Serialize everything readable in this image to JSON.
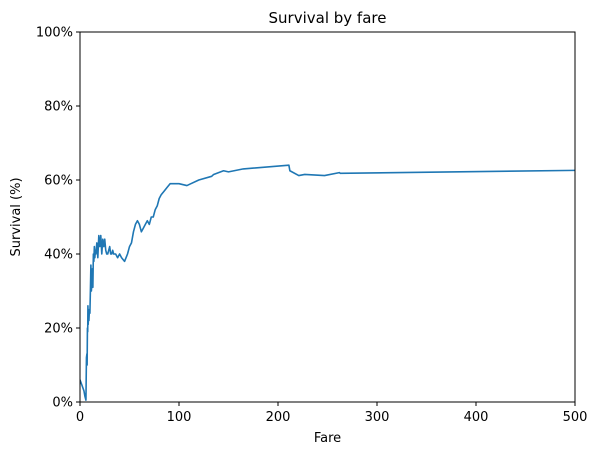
{
  "chart_data": {
    "type": "line",
    "title": "Survival by fare",
    "xlabel": "Fare",
    "ylabel": "Survival (%)",
    "xlim": [
      0,
      500
    ],
    "ylim": [
      0,
      100
    ],
    "x_ticks": [
      0,
      100,
      200,
      300,
      400,
      500
    ],
    "y_ticks": [
      0,
      20,
      40,
      60,
      80,
      100
    ],
    "x_tick_labels": [
      "0",
      "100",
      "200",
      "300",
      "400",
      "500"
    ],
    "y_tick_labels": [
      "0%",
      "20%",
      "40%",
      "60%",
      "80%",
      "100%"
    ],
    "grid": false,
    "line_color": "#1f77b4",
    "series": [
      {
        "x": [
          0,
          4,
          5,
          6,
          6.5,
          7,
          7.2,
          7.5,
          7.8,
          8,
          8.3,
          8.6,
          9,
          9.5,
          10,
          10.5,
          11,
          11.5,
          12,
          12.5,
          13,
          13.5,
          14,
          14.5,
          15,
          15.5,
          16,
          17,
          18,
          19,
          20,
          21,
          22,
          23,
          24,
          25,
          26,
          27,
          28,
          29,
          30,
          31,
          32,
          33,
          34,
          35,
          36,
          38,
          40,
          42,
          45,
          48,
          50,
          52,
          54,
          56,
          58,
          60,
          62,
          64,
          66,
          68,
          70,
          72,
          74,
          76,
          78,
          80,
          82,
          85,
          88,
          91,
          95,
          100,
          108,
          112,
          120,
          133,
          135,
          140,
          145,
          150,
          165,
          211,
          212,
          221,
          227,
          247,
          262,
          263,
          500
        ],
        "y": [
          6,
          3,
          1.5,
          0.5,
          12,
          13,
          10,
          20,
          19,
          26,
          21,
          25,
          22,
          25,
          24,
          30,
          37,
          30,
          33,
          36,
          31,
          40,
          38,
          42,
          39,
          41,
          40,
          43,
          39,
          45,
          42,
          45,
          40,
          44,
          42,
          44,
          41,
          40,
          40,
          41,
          42,
          40,
          40,
          41,
          40,
          40,
          40,
          39,
          40,
          39,
          38,
          40,
          42,
          43,
          46,
          48,
          49,
          48,
          46,
          47,
          48,
          49,
          48,
          50,
          50,
          52,
          53,
          55,
          56,
          57,
          58,
          59,
          59,
          59,
          58.5,
          59,
          60,
          61,
          61.5,
          62,
          62.5,
          62.2,
          63,
          64,
          62.5,
          61.2,
          61.5,
          61.2,
          62,
          61.8,
          62.6
        ]
      }
    ]
  }
}
